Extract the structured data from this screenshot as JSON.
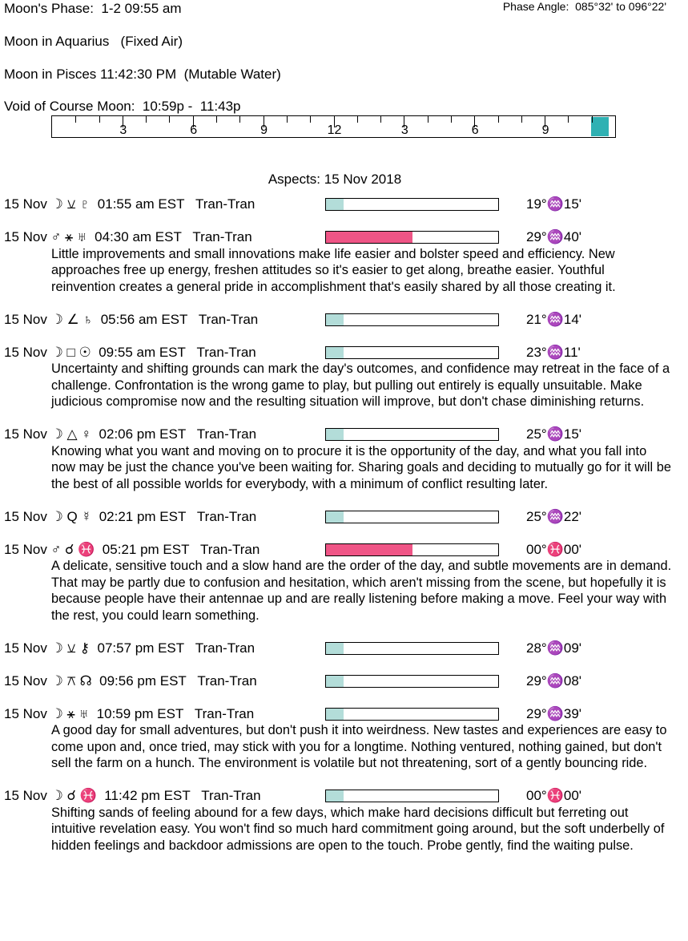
{
  "header": {
    "moon_phase": "Moon's Phase:  1-2 09:55 am",
    "phase_angle": "Phase Angle:  085°32' to 096°22'",
    "moon_sign": "Moon in Aquarius   (Fixed Air)",
    "moon_ingress": "Moon in Pisces 11:42:30 PM  (Mutable Water)",
    "void_of_course": "Void of Course Moon:  10:59p -  11:43p"
  },
  "timeline": {
    "labels": [
      "3",
      "6",
      "9",
      "12",
      "3",
      "6",
      "9"
    ],
    "void_start_hour": 22.98,
    "void_end_hour": 23.72,
    "void_color": "#2fb1b3"
  },
  "aspects_title": "Aspects: 15 Nov 2018",
  "colors": {
    "minor": "#b3ddd9",
    "major": "#ef5586"
  },
  "aspects": [
    {
      "line": "15 Nov ☽ ⚺ ♇  01:55 am EST   Tran-Tran",
      "strength": 0.1,
      "kind": "minor",
      "degree": "19°♒15'",
      "desc": ""
    },
    {
      "line": "15 Nov ♂ ⚹ ♅  04:30 am EST   Tran-Tran",
      "strength": 0.5,
      "kind": "major",
      "degree": "29°♒40'",
      "desc": "Little improvements and small innovations make life easier and bolster speed and efficiency. New approaches free up energy, freshen attitudes so it's easier to get along, breathe easier. Youthful reinvention creates a general pride in accomplishment that's easily shared by all those creating it."
    },
    {
      "line": "15 Nov ☽ ∠ ♄  05:56 am EST   Tran-Tran",
      "strength": 0.1,
      "kind": "minor",
      "degree": "21°♒14'",
      "desc": ""
    },
    {
      "line": "15 Nov ☽ □ ☉  09:55 am EST   Tran-Tran",
      "strength": 0.1,
      "kind": "minor",
      "degree": "23°♒11'",
      "desc": "Uncertainty and shifting grounds can mark the day's outcomes, and confidence may retreat in the face of a challenge. Confrontation is the wrong game to play, but pulling out entirely is equally unsuitable. Make judicious compromise now and the resulting situation will improve, but don't chase diminishing returns."
    },
    {
      "line": "15 Nov ☽ △ ♀  02:06 pm EST   Tran-Tran",
      "strength": 0.1,
      "kind": "minor",
      "degree": "25°♒15'",
      "desc": "Knowing what you want and moving on to procure it is the opportunity of the day, and what you fall into now may be just the chance you've been waiting for. Sharing goals and deciding to mutually go for it will be the best of all possible worlds for everybody, with a minimum of conflict resulting later."
    },
    {
      "line": "15 Nov ☽ Q ☿  02:21 pm EST   Tran-Tran",
      "strength": 0.1,
      "kind": "minor",
      "degree": "25°♒22'",
      "desc": ""
    },
    {
      "line": "15 Nov ♂ ☌ ♓  05:21 pm EST   Tran-Tran",
      "strength": 0.5,
      "kind": "major",
      "degree": "00°♓00'",
      "desc": "A delicate, sensitive touch and a slow hand are the order of the day, and subtle movements are in demand. That may be partly due to confusion and hesitation, which aren't missing from the scene, but hopefully it is because people have their antennae up and are really listening before making a move. Feel your way with the rest, you could learn something."
    },
    {
      "line": "15 Nov ☽ ⚺ ⚷  07:57 pm EST   Tran-Tran",
      "strength": 0.1,
      "kind": "minor",
      "degree": "28°♒09'",
      "desc": ""
    },
    {
      "line": "15 Nov ☽ ⚻ ☊  09:56 pm EST   Tran-Tran",
      "strength": 0.1,
      "kind": "minor",
      "degree": "29°♒08'",
      "desc": ""
    },
    {
      "line": "15 Nov ☽ ⚹ ♅  10:59 pm EST   Tran-Tran",
      "strength": 0.1,
      "kind": "minor",
      "degree": "29°♒39'",
      "desc": "A good day for small adventures, but don't push it into weirdness. New tastes and experiences are easy to come upon and, once tried, may stick with you for a longtime. Nothing ventured, nothing gained, but don't sell the farm on a hunch. The environment is volatile but not threatening, sort of a gently bouncing ride."
    },
    {
      "line": "15 Nov ☽ ☌ ♓  11:42 pm EST   Tran-Tran",
      "strength": 0.1,
      "kind": "minor",
      "degree": "00°♓00'",
      "desc": "Shifting sands of feeling abound for a few days, which make hard decisions difficult but ferreting out intuitive revelation easy. You won't find so much hard commitment going around, but the soft underbelly of hidden feelings and backdoor admissions are open to the touch. Probe gently, find the waiting pulse."
    }
  ]
}
